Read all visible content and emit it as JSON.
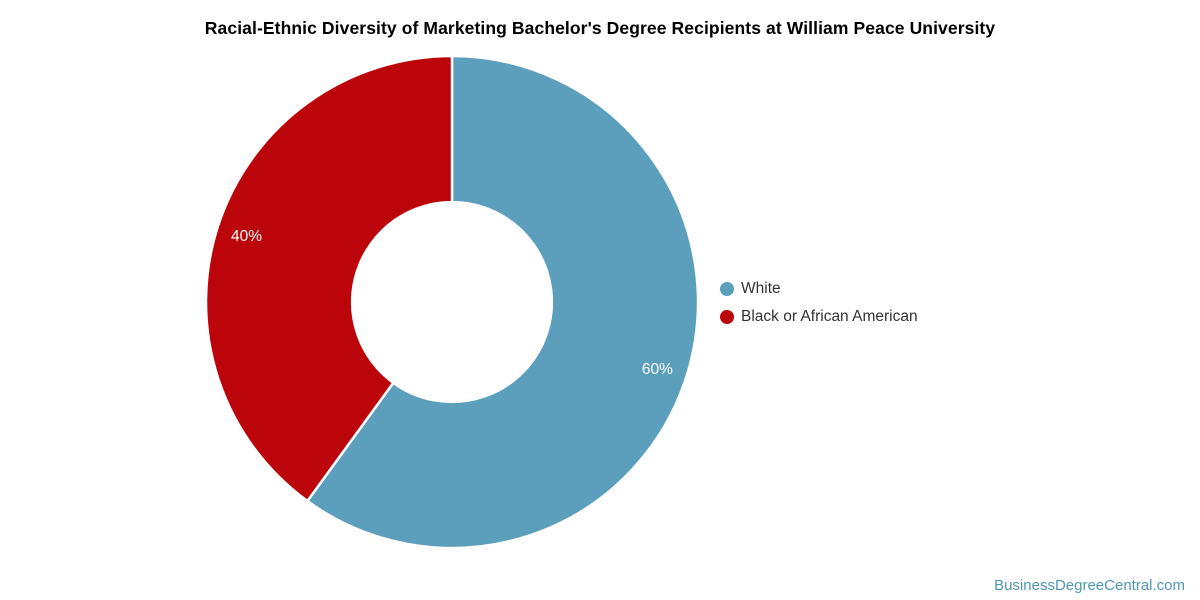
{
  "header": {
    "title": "Racial-Ethnic Diversity of Marketing Bachelor's Degree Recipients at William Peace University"
  },
  "chart_data": {
    "type": "pie",
    "subtype": "donut",
    "title": "Racial-Ethnic Diversity of Marketing Bachelor's Degree Recipients at William Peace University",
    "slices": [
      {
        "label": "White",
        "value": 60,
        "percent_label": "60%",
        "color": "#5B9FBD"
      },
      {
        "label": "Black or African American",
        "value": 40,
        "percent_label": "40%",
        "color": "#BC050A"
      }
    ],
    "start_angle_deg": 0,
    "direction": "clockwise",
    "inner_radius_ratio": 0.406,
    "slice_border_color": "#FFFFFF",
    "label_color": "#FFFFFF",
    "legend_position": "right",
    "background": "#FFFFFF"
  },
  "watermark": {
    "text": "BusinessDegreeCentral.com",
    "color": "#4E96B8"
  }
}
